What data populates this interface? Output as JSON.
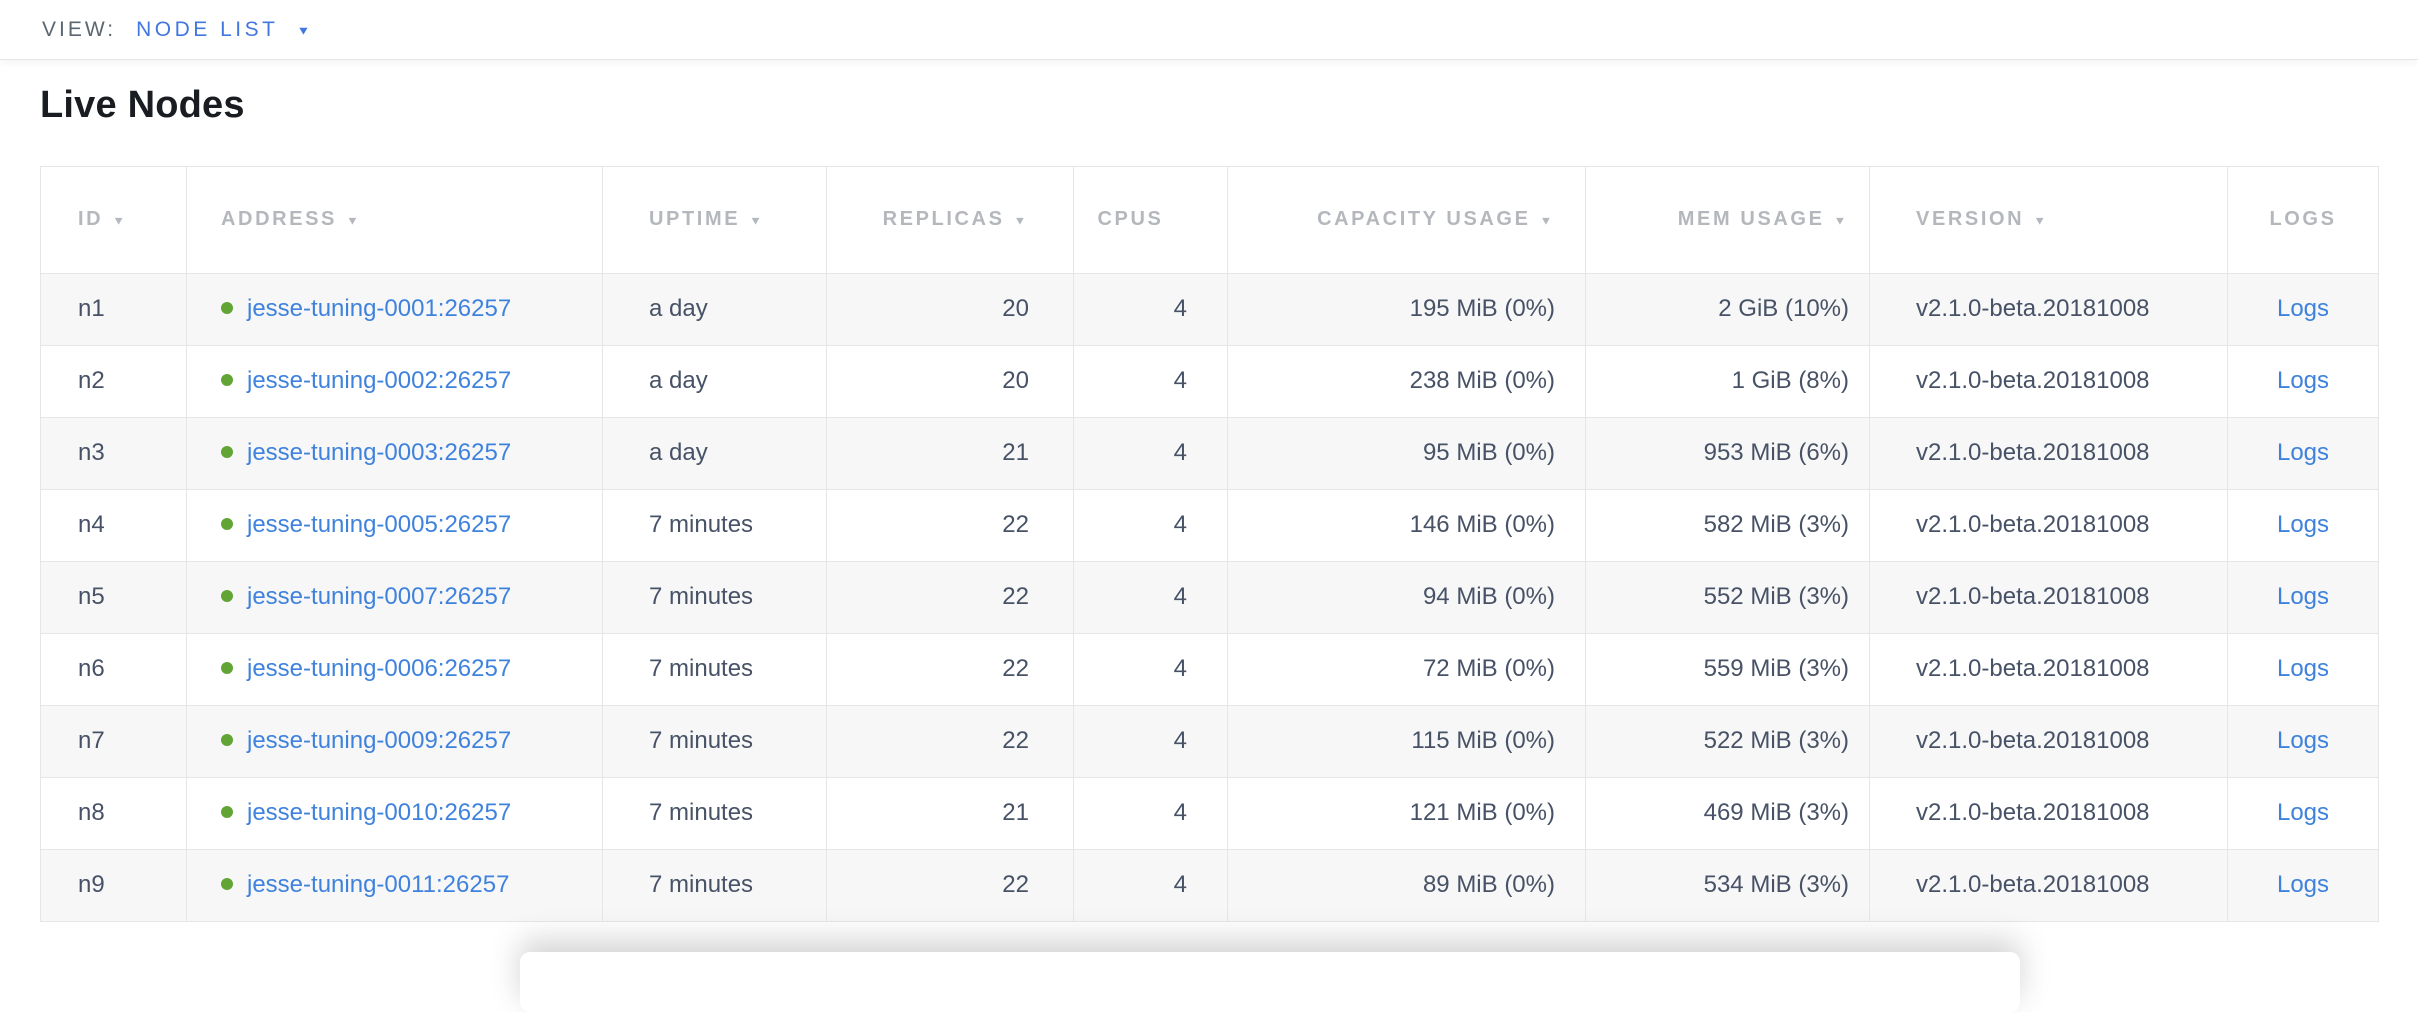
{
  "view_bar": {
    "label": "VIEW:",
    "selected": "NODE LIST"
  },
  "icons": {
    "caret_down": "▼",
    "sort_desc": "▼"
  },
  "page": {
    "title": "Live Nodes"
  },
  "colors": {
    "accent_blue": "#4377e0",
    "link_blue": "#3f82dd",
    "live_dot_green": "#62a535",
    "header_gray": "#b4b8bd",
    "cell_text": "#475266",
    "stripe": "#f7f7f7"
  },
  "table": {
    "columns": [
      {
        "key": "id",
        "label": "ID",
        "sortable": true,
        "align": "left",
        "header_align": "left"
      },
      {
        "key": "address",
        "label": "ADDRESS",
        "sortable": true,
        "align": "left",
        "header_align": "left"
      },
      {
        "key": "uptime",
        "label": "UPTIME",
        "sortable": true,
        "align": "left",
        "header_align": "left"
      },
      {
        "key": "replicas",
        "label": "REPLICAS",
        "sortable": true,
        "align": "right",
        "header_align": "right"
      },
      {
        "key": "cpus",
        "label": "CPUS",
        "sortable": false,
        "align": "right",
        "header_align": "center"
      },
      {
        "key": "capacity",
        "label": "CAPACITY USAGE",
        "sortable": true,
        "align": "right",
        "header_align": "right"
      },
      {
        "key": "mem",
        "label": "MEM USAGE",
        "sortable": true,
        "align": "right",
        "header_align": "right"
      },
      {
        "key": "version",
        "label": "VERSION",
        "sortable": true,
        "align": "left",
        "header_align": "left"
      },
      {
        "key": "logs",
        "label": "LOGS",
        "sortable": false,
        "align": "center",
        "header_align": "center"
      }
    ],
    "rows": [
      {
        "id": "n1",
        "address": "jesse-tuning-0001:26257",
        "status": "live",
        "uptime": "a day",
        "replicas": "20",
        "cpus": "4",
        "capacity": "195 MiB (0%)",
        "mem": "2 GiB (10%)",
        "version": "v2.1.0-beta.20181008",
        "logs": "Logs"
      },
      {
        "id": "n2",
        "address": "jesse-tuning-0002:26257",
        "status": "live",
        "uptime": "a day",
        "replicas": "20",
        "cpus": "4",
        "capacity": "238 MiB (0%)",
        "mem": "1 GiB (8%)",
        "version": "v2.1.0-beta.20181008",
        "logs": "Logs"
      },
      {
        "id": "n3",
        "address": "jesse-tuning-0003:26257",
        "status": "live",
        "uptime": "a day",
        "replicas": "21",
        "cpus": "4",
        "capacity": "95 MiB (0%)",
        "mem": "953 MiB (6%)",
        "version": "v2.1.0-beta.20181008",
        "logs": "Logs"
      },
      {
        "id": "n4",
        "address": "jesse-tuning-0005:26257",
        "status": "live",
        "uptime": "7 minutes",
        "replicas": "22",
        "cpus": "4",
        "capacity": "146 MiB (0%)",
        "mem": "582 MiB (3%)",
        "version": "v2.1.0-beta.20181008",
        "logs": "Logs"
      },
      {
        "id": "n5",
        "address": "jesse-tuning-0007:26257",
        "status": "live",
        "uptime": "7 minutes",
        "replicas": "22",
        "cpus": "4",
        "capacity": "94 MiB (0%)",
        "mem": "552 MiB (3%)",
        "version": "v2.1.0-beta.20181008",
        "logs": "Logs"
      },
      {
        "id": "n6",
        "address": "jesse-tuning-0006:26257",
        "status": "live",
        "uptime": "7 minutes",
        "replicas": "22",
        "cpus": "4",
        "capacity": "72 MiB (0%)",
        "mem": "559 MiB (3%)",
        "version": "v2.1.0-beta.20181008",
        "logs": "Logs"
      },
      {
        "id": "n7",
        "address": "jesse-tuning-0009:26257",
        "status": "live",
        "uptime": "7 minutes",
        "replicas": "22",
        "cpus": "4",
        "capacity": "115 MiB (0%)",
        "mem": "522 MiB (3%)",
        "version": "v2.1.0-beta.20181008",
        "logs": "Logs"
      },
      {
        "id": "n8",
        "address": "jesse-tuning-0010:26257",
        "status": "live",
        "uptime": "7 minutes",
        "replicas": "21",
        "cpus": "4",
        "capacity": "121 MiB (0%)",
        "mem": "469 MiB (3%)",
        "version": "v2.1.0-beta.20181008",
        "logs": "Logs"
      },
      {
        "id": "n9",
        "address": "jesse-tuning-0011:26257",
        "status": "live",
        "uptime": "7 minutes",
        "replicas": "22",
        "cpus": "4",
        "capacity": "89 MiB (0%)",
        "mem": "534 MiB (3%)",
        "version": "v2.1.0-beta.20181008",
        "logs": "Logs"
      }
    ]
  }
}
